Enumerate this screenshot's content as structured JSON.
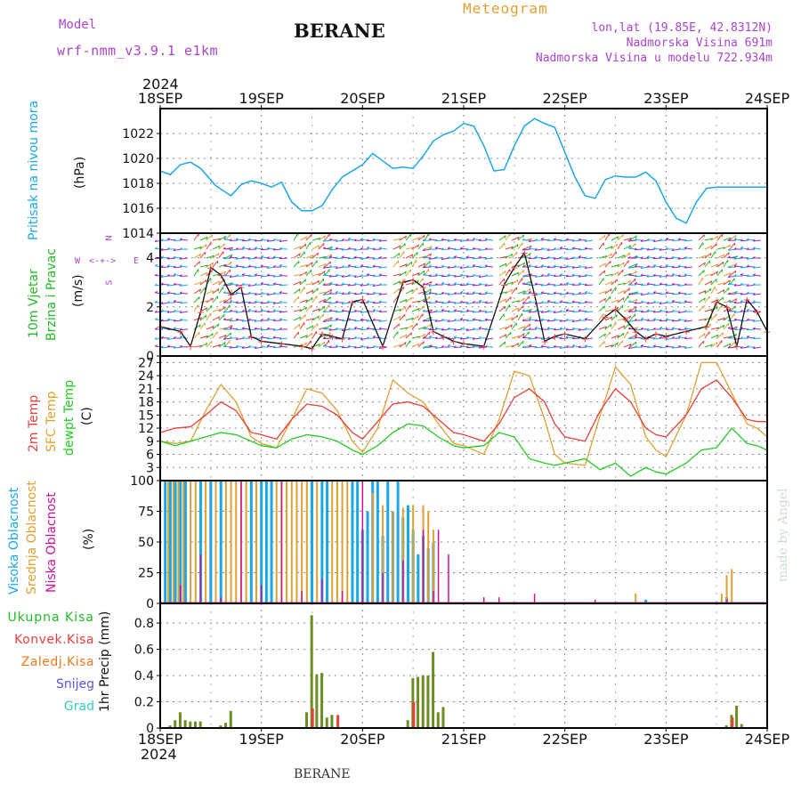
{
  "header": {
    "model_label": "Model",
    "model_name": "wrf-nmm_v3.9.1 e1km",
    "station": "BERANE",
    "meteogram": "Meteogram",
    "lonlat": "lon,lat (19.85E, 42.8312N)",
    "elevation": "Nadmorska Visina 691m",
    "model_elevation": "Nadmorska Visina u modelu 722.934m",
    "year_top": "2024",
    "year_bottom": "2024",
    "footer_station": "BERANE",
    "credit": "made by Angel"
  },
  "colors": {
    "pressure": "#1aa7e8",
    "wind_label": "#22bb22",
    "wind_compass": "#aa44cc",
    "temp2m": "#e8403a",
    "sfc": "#e0a030",
    "dewpt": "#22cc22",
    "high_cloud": "#1aa7e8",
    "mid_cloud": "#e0a030",
    "low_cloud": "#cc1199",
    "precip_total": "#6b8e23",
    "precip_conv": "#e8403a",
    "precip_strat": "#e87a20",
    "snow": "#5555dd",
    "graupel": "#33ccbb"
  },
  "chart_data": [
    {
      "type": "line",
      "panel": "pressure",
      "ylabel": [
        "Pritisak na nivou mora",
        "(hPa)"
      ],
      "x_ticks": [
        "18SEP",
        "19SEP",
        "20SEP",
        "21SEP",
        "22SEP",
        "23SEP",
        "24SEP"
      ],
      "ylim": [
        1014,
        1024
      ],
      "y_ticks": [
        "1014",
        "1016",
        "1018",
        "1020",
        "1022"
      ],
      "grid": true,
      "series": [
        {
          "x": [
            0,
            0.1,
            0.2,
            0.3,
            0.4,
            0.55,
            0.7,
            0.8,
            0.9,
            1.0,
            1.1,
            1.2,
            1.3,
            1.4,
            1.5,
            1.6,
            1.7,
            1.8,
            1.9,
            2.0,
            2.1,
            2.2,
            2.3,
            2.4,
            2.5,
            2.6,
            2.7,
            2.8,
            2.9,
            3.0,
            3.1,
            3.2,
            3.3,
            3.4,
            3.5,
            3.6,
            3.7,
            3.8,
            3.9,
            4.0,
            4.1,
            4.2,
            4.3,
            4.4,
            4.5,
            4.6,
            4.7,
            4.8,
            4.9,
            5.0,
            5.1,
            5.2,
            5.3,
            5.4,
            5.5,
            5.6,
            5.7,
            5.8,
            5.9,
            6.0
          ],
          "values": [
            1019,
            1018.7,
            1019.5,
            1019.7,
            1019.2,
            1017.8,
            1017,
            1017.9,
            1018.2,
            1018.0,
            1017.7,
            1018.1,
            1016.5,
            1015.8,
            1015.8,
            1016.2,
            1017.5,
            1018.5,
            1019,
            1019.5,
            1020.4,
            1019.8,
            1019.2,
            1019.3,
            1019.2,
            1020.2,
            1021.4,
            1021.9,
            1022.2,
            1022.8,
            1022.6,
            1021.0,
            1019.0,
            1019.1,
            1021,
            1022.6,
            1023.2,
            1022.8,
            1022.5,
            1020.5,
            1018.5,
            1017.0,
            1016.8,
            1018.3,
            1018.6,
            1018.5,
            1018.5,
            1018.9,
            1018.2,
            1016.5,
            1015.2,
            1014.8,
            1016.5,
            1017.6,
            1017.7,
            1017.7,
            1017.7,
            1017.7,
            1017.7,
            1017.7
          ]
        }
      ]
    },
    {
      "type": "line",
      "panel": "wind",
      "ylabel": [
        "10m Vjetar",
        "Brzina i Pravac",
        "(m/s)"
      ],
      "compass": {
        "n": "N",
        "s": "S",
        "e": "E",
        "w": "W"
      },
      "ylim": [
        0,
        5
      ],
      "y_ticks": [
        "0",
        "2",
        "4"
      ],
      "grid": true,
      "series": [
        {
          "name": "speed",
          "x": [
            0,
            0.2,
            0.3,
            0.4,
            0.5,
            0.6,
            0.7,
            0.8,
            0.9,
            1.0,
            1.2,
            1.4,
            1.5,
            1.6,
            1.7,
            1.8,
            1.9,
            2.0,
            2.2,
            2.4,
            2.5,
            2.6,
            2.7,
            2.8,
            2.9,
            3.0,
            3.2,
            3.4,
            3.5,
            3.6,
            3.7,
            3.8,
            3.9,
            4.0,
            4.2,
            4.4,
            4.5,
            4.6,
            4.7,
            4.8,
            4.9,
            5.0,
            5.2,
            5.4,
            5.5,
            5.6,
            5.7,
            5.8,
            5.9,
            6.0
          ],
          "values": [
            1.2,
            1.0,
            0.4,
            1.8,
            3.6,
            3.3,
            2.5,
            2.8,
            0.8,
            0.6,
            0.5,
            0.4,
            0.3,
            0.9,
            0.8,
            0.7,
            2.2,
            2.3,
            0.4,
            3.0,
            3.1,
            2.8,
            1.0,
            0.8,
            0.6,
            0.5,
            0.4,
            2.9,
            3.6,
            4.2,
            2.5,
            0.6,
            0.8,
            0.9,
            0.7,
            1.6,
            1.9,
            1.5,
            1.0,
            0.7,
            0.9,
            0.8,
            1.0,
            1.2,
            2.2,
            2.0,
            0.4,
            2.3,
            1.8,
            1.0
          ]
        }
      ]
    },
    {
      "type": "line",
      "panel": "temperature",
      "ylabel": [
        "2m Temp",
        "SFC Temp",
        "dewpt Temp",
        "(C)"
      ],
      "ylim": [
        0,
        28.5
      ],
      "y_ticks": [
        "0",
        "3",
        "6",
        "9",
        "12",
        "15",
        "18",
        "21",
        "24",
        "27"
      ],
      "grid": true,
      "series": [
        {
          "name": "2m Temp",
          "x": [
            0,
            0.15,
            0.3,
            0.45,
            0.6,
            0.75,
            0.9,
            1.0,
            1.15,
            1.3,
            1.45,
            1.6,
            1.75,
            1.9,
            2.0,
            2.15,
            2.3,
            2.45,
            2.6,
            2.75,
            2.9,
            3.0,
            3.2,
            3.35,
            3.5,
            3.65,
            3.8,
            3.9,
            4.0,
            4.2,
            4.35,
            4.5,
            4.65,
            4.8,
            4.9,
            5.0,
            5.2,
            5.35,
            5.5,
            5.65,
            5.8,
            5.9,
            6.0
          ],
          "values": [
            11,
            12,
            12.3,
            15,
            18,
            16,
            11,
            10.5,
            9.5,
            14,
            17.5,
            17,
            15,
            11,
            9.5,
            13.5,
            17.5,
            18,
            17,
            14,
            11,
            10.5,
            9,
            13,
            19,
            21,
            18,
            13,
            10,
            9,
            16,
            21,
            18,
            12,
            10.5,
            10,
            15,
            21,
            23,
            19,
            14,
            13.5,
            13.5
          ]
        },
        {
          "name": "SFC Temp",
          "x": [
            0,
            0.15,
            0.3,
            0.45,
            0.6,
            0.75,
            0.9,
            1.0,
            1.15,
            1.3,
            1.45,
            1.6,
            1.75,
            1.9,
            2.0,
            2.15,
            2.3,
            2.45,
            2.6,
            2.75,
            2.9,
            3.0,
            3.2,
            3.35,
            3.5,
            3.65,
            3.8,
            3.9,
            4.0,
            4.2,
            4.35,
            4.5,
            4.65,
            4.8,
            4.9,
            5.0,
            5.2,
            5.35,
            5.5,
            5.65,
            5.8,
            5.9,
            6.0
          ],
          "values": [
            9,
            8.5,
            9,
            16,
            22,
            18,
            10,
            8.5,
            7.5,
            14,
            21,
            20,
            16,
            9,
            6.5,
            12,
            23,
            20,
            18,
            13,
            8.5,
            8,
            6,
            14,
            25,
            24,
            14,
            6,
            4,
            3.5,
            15,
            26,
            22,
            10,
            7,
            5.5,
            15,
            27,
            27,
            20,
            13,
            12,
            10
          ]
        },
        {
          "name": "dewpt Temp",
          "x": [
            0,
            0.15,
            0.3,
            0.45,
            0.6,
            0.75,
            0.9,
            1.0,
            1.15,
            1.3,
            1.45,
            1.6,
            1.75,
            1.9,
            2.0,
            2.15,
            2.3,
            2.45,
            2.6,
            2.75,
            2.9,
            3.0,
            3.2,
            3.35,
            3.5,
            3.65,
            3.8,
            3.9,
            4.0,
            4.2,
            4.35,
            4.5,
            4.65,
            4.8,
            4.9,
            5.0,
            5.2,
            5.35,
            5.5,
            5.65,
            5.8,
            5.9,
            6.0
          ],
          "values": [
            9,
            8,
            9,
            10,
            11,
            10.5,
            9,
            8,
            7.5,
            9.5,
            10.5,
            10,
            9,
            7,
            6,
            8,
            11,
            13,
            12.5,
            10,
            8,
            7.5,
            8,
            11,
            10,
            5,
            4,
            3.5,
            4,
            5,
            2.5,
            4,
            1,
            3,
            2,
            1.5,
            4,
            7,
            7.5,
            12,
            8.5,
            8,
            7
          ]
        }
      ]
    },
    {
      "type": "bar",
      "panel": "cloud",
      "ylabel": [
        "Visoka Oblacnost",
        "Srednja Oblacnost",
        "Niska Oblacnost",
        "(%)"
      ],
      "ylim": [
        0,
        100
      ],
      "y_ticks": [
        "0",
        "25",
        "50",
        "75",
        "100"
      ],
      "grid": true,
      "series": [
        {
          "name": "Visoka Oblacnost",
          "x": [
            0.05,
            0.1,
            0.15,
            0.2,
            0.25,
            0.4,
            0.5,
            0.6,
            0.9,
            1.0,
            1.05,
            1.1,
            1.5,
            1.6,
            1.65,
            1.9,
            1.95,
            2.0,
            2.05,
            2.1,
            2.15,
            2.2,
            2.25,
            2.3,
            2.35,
            2.4,
            2.45,
            2.5,
            2.55,
            2.6,
            2.65,
            2.7,
            4.8,
            5.6
          ],
          "values": [
            100,
            100,
            100,
            100,
            100,
            100,
            100,
            100,
            100,
            100,
            100,
            100,
            100,
            100,
            100,
            100,
            100,
            60,
            75,
            100,
            100,
            55,
            100,
            75,
            100,
            70,
            80,
            60,
            40,
            55,
            45,
            50,
            3,
            5
          ]
        },
        {
          "name": "Srednja Oblacnost",
          "x": [
            0.08,
            0.13,
            0.18,
            0.23,
            0.3,
            0.35,
            0.45,
            0.55,
            0.65,
            0.7,
            0.75,
            0.8,
            0.85,
            0.95,
            1.15,
            1.2,
            1.25,
            1.3,
            1.35,
            1.4,
            1.45,
            1.55,
            1.7,
            1.75,
            1.8,
            1.85,
            2.1,
            2.2,
            2.3,
            2.4,
            2.5,
            2.6,
            2.65,
            2.7,
            4.7,
            5.55,
            5.6,
            5.65
          ],
          "values": [
            100,
            100,
            100,
            100,
            100,
            100,
            100,
            100,
            100,
            100,
            100,
            100,
            100,
            100,
            100,
            100,
            100,
            100,
            100,
            100,
            100,
            100,
            100,
            100,
            100,
            100,
            90,
            80,
            75,
            78,
            80,
            80,
            75,
            60,
            8,
            8,
            23,
            28
          ]
        },
        {
          "name": "Niska Oblacnost",
          "x": [
            0.2,
            0.4,
            0.6,
            0.8,
            1.0,
            1.2,
            1.4,
            1.6,
            1.8,
            2.0,
            2.2,
            2.4,
            2.6,
            2.7,
            2.75,
            2.85,
            3.2,
            3.35,
            3.7,
            4.3,
            5.6
          ],
          "values": [
            15,
            40,
            5,
            100,
            15,
            100,
            10,
            20,
            10,
            100,
            25,
            35,
            60,
            10,
            60,
            40,
            5,
            5,
            8,
            3,
            3
          ]
        }
      ]
    },
    {
      "type": "bar",
      "panel": "precip",
      "ylabel": [
        "1hr Precip (mm)"
      ],
      "legend": [
        "Ukupna Kisa",
        "Konvek.Kisa",
        "Zaledj.Kisa",
        "Snijeg",
        "Grad"
      ],
      "ylim": [
        0,
        0.95
      ],
      "y_ticks": [
        "0",
        "0.2",
        "0.4",
        "0.6",
        "0.8"
      ],
      "grid": true,
      "series": [
        {
          "name": "Ukupna Kisa",
          "x": [
            0.1,
            0.15,
            0.2,
            0.25,
            0.3,
            0.35,
            0.4,
            0.6,
            0.65,
            0.7,
            1.45,
            1.5,
            1.55,
            1.6,
            1.65,
            1.7,
            2.45,
            2.5,
            2.55,
            2.6,
            2.65,
            2.7,
            2.75,
            2.8,
            5.6,
            5.65,
            5.7,
            5.75
          ],
          "values": [
            0.02,
            0.06,
            0.12,
            0.06,
            0.05,
            0.05,
            0.05,
            0.02,
            0.04,
            0.13,
            0.12,
            0.86,
            0.41,
            0.42,
            0.08,
            0.1,
            0.06,
            0.38,
            0.39,
            0.4,
            0.4,
            0.58,
            0.12,
            0.16,
            0.02,
            0.1,
            0.17,
            0.03
          ]
        },
        {
          "name": "Konvek.Kisa",
          "x": [
            1.5,
            1.75,
            2.5,
            5.65
          ],
          "values": [
            0.15,
            0.1,
            0.2,
            0.08
          ]
        }
      ]
    }
  ]
}
